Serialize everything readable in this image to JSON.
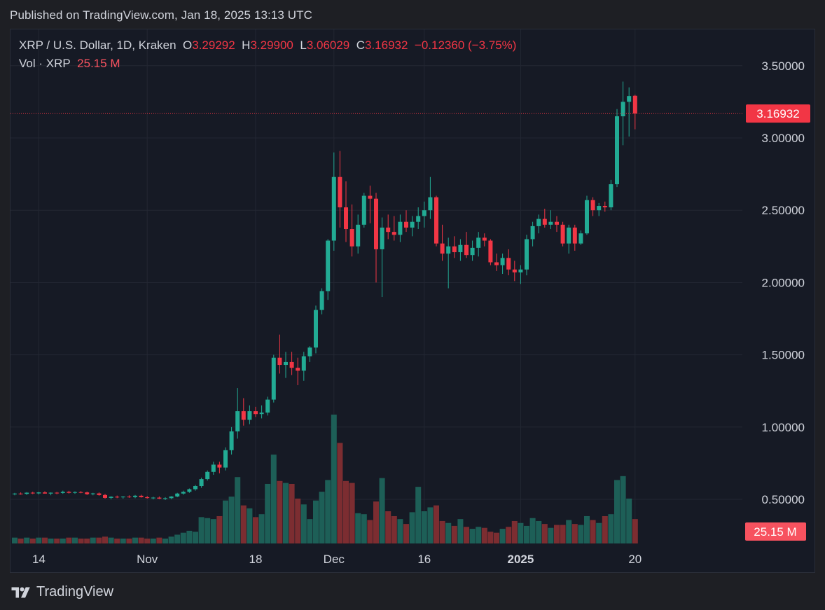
{
  "published": "Published on TradingView.com, Jan 18, 2025 13:13 UTC",
  "legend": {
    "symbol": "XRP / U.S. Dollar, 1D, Kraken",
    "o_label": "O",
    "o_value": "3.29292",
    "h_label": "H",
    "h_value": "3.29900",
    "l_label": "L",
    "l_value": "3.06029",
    "c_label": "C",
    "c_value": "3.16932",
    "change": "−0.12360 (−3.75%)",
    "vol_label": "Vol · XRP",
    "vol_value": "25.15 M"
  },
  "footer": {
    "brand": "TradingView",
    "logo_icon": "tradingview-logo-icon"
  },
  "colors": {
    "up": "#22ab94",
    "down": "#f23645",
    "up_vol": "#1d5f57",
    "down_vol": "#7c2d31",
    "grid": "#232733",
    "text": "#d1d4dc"
  },
  "chart_data": {
    "type": "candlestick",
    "symbol": "XRP / U.S. Dollar",
    "interval": "1D",
    "exchange": "Kraken",
    "x_start": "2024-10-10",
    "price_axis": {
      "ticks": [
        "0.50000",
        "1.00000",
        "1.50000",
        "2.00000",
        "2.50000",
        "3.00000",
        "3.50000"
      ],
      "range": [
        0.2,
        3.85
      ]
    },
    "last_price_label": "3.16932",
    "last_volume_label": "25.15 M",
    "x_axis_labels": [
      {
        "label": "14",
        "index": 4,
        "bold": false
      },
      {
        "label": "Nov",
        "index": 22,
        "bold": false
      },
      {
        "label": "18",
        "index": 40,
        "bold": false
      },
      {
        "label": "Dec",
        "index": 53,
        "bold": false
      },
      {
        "label": "16",
        "index": 68,
        "bold": false
      },
      {
        "label": "2025",
        "index": 84,
        "bold": true
      },
      {
        "label": "20",
        "index": 103,
        "bold": false
      }
    ],
    "ohlc": [
      [
        0.536,
        0.545,
        0.528,
        0.54
      ],
      [
        0.54,
        0.548,
        0.532,
        0.538
      ],
      [
        0.538,
        0.55,
        0.53,
        0.546
      ],
      [
        0.546,
        0.553,
        0.536,
        0.541
      ],
      [
        0.541,
        0.552,
        0.534,
        0.548
      ],
      [
        0.548,
        0.556,
        0.54,
        0.54
      ],
      [
        0.54,
        0.548,
        0.528,
        0.546
      ],
      [
        0.546,
        0.552,
        0.535,
        0.544
      ],
      [
        0.544,
        0.56,
        0.538,
        0.552
      ],
      [
        0.552,
        0.559,
        0.54,
        0.545
      ],
      [
        0.545,
        0.555,
        0.538,
        0.55
      ],
      [
        0.55,
        0.557,
        0.542,
        0.548
      ],
      [
        0.548,
        0.554,
        0.53,
        0.536
      ],
      [
        0.536,
        0.545,
        0.528,
        0.541
      ],
      [
        0.541,
        0.548,
        0.525,
        0.53
      ],
      [
        0.53,
        0.538,
        0.505,
        0.51
      ],
      [
        0.51,
        0.522,
        0.5,
        0.518
      ],
      [
        0.518,
        0.526,
        0.508,
        0.514
      ],
      [
        0.514,
        0.522,
        0.505,
        0.519
      ],
      [
        0.519,
        0.528,
        0.51,
        0.516
      ],
      [
        0.516,
        0.53,
        0.508,
        0.525
      ],
      [
        0.525,
        0.532,
        0.512,
        0.515
      ],
      [
        0.515,
        0.523,
        0.505,
        0.509
      ],
      [
        0.509,
        0.518,
        0.5,
        0.512
      ],
      [
        0.512,
        0.52,
        0.502,
        0.505
      ],
      [
        0.505,
        0.515,
        0.495,
        0.508
      ],
      [
        0.508,
        0.522,
        0.502,
        0.52
      ],
      [
        0.52,
        0.545,
        0.515,
        0.54
      ],
      [
        0.54,
        0.56,
        0.532,
        0.552
      ],
      [
        0.552,
        0.575,
        0.545,
        0.57
      ],
      [
        0.57,
        0.6,
        0.56,
        0.592
      ],
      [
        0.592,
        0.65,
        0.58,
        0.64
      ],
      [
        0.64,
        0.7,
        0.63,
        0.69
      ],
      [
        0.69,
        0.76,
        0.67,
        0.74
      ],
      [
        0.74,
        0.76,
        0.68,
        0.72
      ],
      [
        0.72,
        0.86,
        0.7,
        0.84
      ],
      [
        0.84,
        1.0,
        0.81,
        0.97
      ],
      [
        0.97,
        1.27,
        0.92,
        1.11
      ],
      [
        1.11,
        1.2,
        1.01,
        1.05
      ],
      [
        1.05,
        1.15,
        1.02,
        1.11
      ],
      [
        1.11,
        1.14,
        1.07,
        1.09
      ],
      [
        1.09,
        1.15,
        1.06,
        1.1
      ],
      [
        1.1,
        1.21,
        1.08,
        1.19
      ],
      [
        1.19,
        1.5,
        1.17,
        1.48
      ],
      [
        1.48,
        1.64,
        1.37,
        1.43
      ],
      [
        1.43,
        1.52,
        1.34,
        1.45
      ],
      [
        1.45,
        1.52,
        1.36,
        1.41
      ],
      [
        1.41,
        1.48,
        1.29,
        1.39
      ],
      [
        1.39,
        1.52,
        1.32,
        1.49
      ],
      [
        1.49,
        1.56,
        1.45,
        1.55
      ],
      [
        1.55,
        1.84,
        1.51,
        1.81
      ],
      [
        1.81,
        1.96,
        1.78,
        1.94
      ],
      [
        1.94,
        2.3,
        1.88,
        2.29
      ],
      [
        2.29,
        2.9,
        2.22,
        2.73
      ],
      [
        2.73,
        2.91,
        2.38,
        2.52
      ],
      [
        2.52,
        2.7,
        2.28,
        2.37
      ],
      [
        2.37,
        2.54,
        2.18,
        2.25
      ],
      [
        2.25,
        2.47,
        2.2,
        2.4
      ],
      [
        2.4,
        2.62,
        2.38,
        2.6
      ],
      [
        2.6,
        2.67,
        2.41,
        2.58
      ],
      [
        2.58,
        2.62,
        2.0,
        2.23
      ],
      [
        2.23,
        2.45,
        1.9,
        2.38
      ],
      [
        2.38,
        2.47,
        2.3,
        2.35
      ],
      [
        2.35,
        2.46,
        2.29,
        2.33
      ],
      [
        2.33,
        2.47,
        2.28,
        2.42
      ],
      [
        2.42,
        2.5,
        2.35,
        2.38
      ],
      [
        2.38,
        2.46,
        2.32,
        2.42
      ],
      [
        2.42,
        2.52,
        2.37,
        2.46
      ],
      [
        2.46,
        2.56,
        2.38,
        2.5
      ],
      [
        2.5,
        2.73,
        2.44,
        2.59
      ],
      [
        2.59,
        2.6,
        2.25,
        2.27
      ],
      [
        2.27,
        2.4,
        2.15,
        2.2
      ],
      [
        2.2,
        2.31,
        1.96,
        2.25
      ],
      [
        2.25,
        2.32,
        2.17,
        2.21
      ],
      [
        2.21,
        2.3,
        2.15,
        2.26
      ],
      [
        2.26,
        2.35,
        2.17,
        2.19
      ],
      [
        2.19,
        2.29,
        2.15,
        2.24
      ],
      [
        2.24,
        2.35,
        2.18,
        2.31
      ],
      [
        2.31,
        2.34,
        2.25,
        2.29
      ],
      [
        2.29,
        2.3,
        2.12,
        2.14
      ],
      [
        2.14,
        2.2,
        2.08,
        2.12
      ],
      [
        2.12,
        2.2,
        2.06,
        2.17
      ],
      [
        2.17,
        2.23,
        2.05,
        2.09
      ],
      [
        2.09,
        2.15,
        2.01,
        2.07
      ],
      [
        2.07,
        2.12,
        1.99,
        2.09
      ],
      [
        2.09,
        2.33,
        2.05,
        2.3
      ],
      [
        2.3,
        2.42,
        2.25,
        2.39
      ],
      [
        2.39,
        2.47,
        2.34,
        2.44
      ],
      [
        2.44,
        2.51,
        2.38,
        2.4
      ],
      [
        2.4,
        2.5,
        2.37,
        2.42
      ],
      [
        2.42,
        2.46,
        2.35,
        2.4
      ],
      [
        2.4,
        2.42,
        2.25,
        2.27
      ],
      [
        2.27,
        2.4,
        2.2,
        2.38
      ],
      [
        2.38,
        2.4,
        2.22,
        2.27
      ],
      [
        2.27,
        2.36,
        2.26,
        2.34
      ],
      [
        2.34,
        2.6,
        2.33,
        2.57
      ],
      [
        2.57,
        2.59,
        2.46,
        2.5
      ],
      [
        2.5,
        2.55,
        2.46,
        2.53
      ],
      [
        2.53,
        2.56,
        2.49,
        2.52
      ],
      [
        2.52,
        2.71,
        2.5,
        2.68
      ],
      [
        2.68,
        3.2,
        2.66,
        3.15
      ],
      [
        3.15,
        3.39,
        2.95,
        3.25
      ],
      [
        3.25,
        3.35,
        3.01,
        3.29
      ],
      [
        3.292,
        3.299,
        3.06,
        3.169
      ]
    ],
    "volume_relative": [
      6,
      5,
      6,
      5,
      6,
      6,
      5,
      5,
      5,
      6,
      6,
      5,
      5,
      6,
      6,
      7,
      6,
      5,
      5,
      5,
      6,
      6,
      5,
      5,
      6,
      5,
      7,
      9,
      11,
      13,
      12,
      27,
      26,
      25,
      28,
      44,
      48,
      68,
      39,
      36,
      27,
      30,
      61,
      91,
      64,
      62,
      61,
      46,
      40,
      25,
      44,
      53,
      65,
      132,
      103,
      64,
      62,
      31,
      30,
      24,
      43,
      67,
      33,
      28,
      25,
      20,
      32,
      58,
      33,
      37,
      39,
      23,
      21,
      18,
      25,
      17,
      15,
      17,
      16,
      12,
      11,
      15,
      17,
      23,
      21,
      18,
      26,
      23,
      20,
      16,
      19,
      19,
      24,
      20,
      19,
      28,
      24,
      21,
      28,
      30,
      65,
      69,
      46,
      25
    ]
  }
}
